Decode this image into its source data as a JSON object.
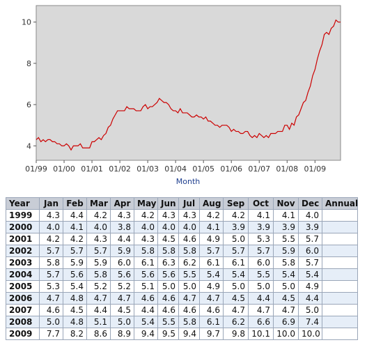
{
  "chart_data": {
    "type": "line",
    "title": "",
    "xlabel": "Month",
    "ylabel": "",
    "ylim": [
      3.3,
      10.8
    ],
    "yticks": [
      4,
      6,
      8,
      10
    ],
    "grid": false,
    "x_ticks": [
      "01/99",
      "01/00",
      "01/01",
      "01/02",
      "01/03",
      "01/04",
      "01/05",
      "01/06",
      "01/07",
      "01/08",
      "01/09"
    ],
    "series": [
      {
        "color": "#cc0000",
        "x": [
          "1999-01",
          "1999-02",
          "1999-03",
          "1999-04",
          "1999-05",
          "1999-06",
          "1999-07",
          "1999-08",
          "1999-09",
          "1999-10",
          "1999-11",
          "1999-12",
          "2000-01",
          "2000-02",
          "2000-03",
          "2000-04",
          "2000-05",
          "2000-06",
          "2000-07",
          "2000-08",
          "2000-09",
          "2000-10",
          "2000-11",
          "2000-12",
          "2001-01",
          "2001-02",
          "2001-03",
          "2001-04",
          "2001-05",
          "2001-06",
          "2001-07",
          "2001-08",
          "2001-09",
          "2001-10",
          "2001-11",
          "2001-12",
          "2002-01",
          "2002-02",
          "2002-03",
          "2002-04",
          "2002-05",
          "2002-06",
          "2002-07",
          "2002-08",
          "2002-09",
          "2002-10",
          "2002-11",
          "2002-12",
          "2003-01",
          "2003-02",
          "2003-03",
          "2003-04",
          "2003-05",
          "2003-06",
          "2003-07",
          "2003-08",
          "2003-09",
          "2003-10",
          "2003-11",
          "2003-12",
          "2004-01",
          "2004-02",
          "2004-03",
          "2004-04",
          "2004-05",
          "2004-06",
          "2004-07",
          "2004-08",
          "2004-09",
          "2004-10",
          "2004-11",
          "2004-12",
          "2005-01",
          "2005-02",
          "2005-03",
          "2005-04",
          "2005-05",
          "2005-06",
          "2005-07",
          "2005-08",
          "2005-09",
          "2005-10",
          "2005-11",
          "2005-12",
          "2006-01",
          "2006-02",
          "2006-03",
          "2006-04",
          "2006-05",
          "2006-06",
          "2006-07",
          "2006-08",
          "2006-09",
          "2006-10",
          "2006-11",
          "2006-12",
          "2007-01",
          "2007-02",
          "2007-03",
          "2007-04",
          "2007-05",
          "2007-06",
          "2007-07",
          "2007-08",
          "2007-09",
          "2007-10",
          "2007-11",
          "2007-12",
          "2008-01",
          "2008-02",
          "2008-03",
          "2008-04",
          "2008-05",
          "2008-06",
          "2008-07",
          "2008-08",
          "2008-09",
          "2008-10",
          "2008-11",
          "2008-12",
          "2009-01",
          "2009-02",
          "2009-03",
          "2009-04",
          "2009-05",
          "2009-06",
          "2009-07",
          "2009-08",
          "2009-09",
          "2009-10",
          "2009-11",
          "2009-12"
        ],
        "values": [
          4.3,
          4.4,
          4.2,
          4.3,
          4.2,
          4.3,
          4.3,
          4.2,
          4.2,
          4.1,
          4.1,
          4.0,
          4.0,
          4.1,
          4.0,
          3.8,
          4.0,
          4.0,
          4.0,
          4.1,
          3.9,
          3.9,
          3.9,
          3.9,
          4.2,
          4.2,
          4.3,
          4.4,
          4.3,
          4.5,
          4.6,
          4.9,
          5.0,
          5.3,
          5.5,
          5.7,
          5.7,
          5.7,
          5.7,
          5.9,
          5.8,
          5.8,
          5.8,
          5.7,
          5.7,
          5.7,
          5.9,
          6.0,
          5.8,
          5.9,
          5.9,
          6.0,
          6.1,
          6.3,
          6.2,
          6.1,
          6.1,
          6.0,
          5.8,
          5.7,
          5.7,
          5.6,
          5.8,
          5.6,
          5.6,
          5.6,
          5.5,
          5.4,
          5.4,
          5.5,
          5.4,
          5.4,
          5.3,
          5.4,
          5.2,
          5.2,
          5.1,
          5.0,
          5.0,
          4.9,
          5.0,
          5.0,
          5.0,
          4.9,
          4.7,
          4.8,
          4.7,
          4.7,
          4.6,
          4.6,
          4.7,
          4.7,
          4.5,
          4.4,
          4.5,
          4.4,
          4.6,
          4.5,
          4.4,
          4.5,
          4.4,
          4.6,
          4.6,
          4.6,
          4.7,
          4.7,
          4.7,
          5.0,
          5.0,
          4.8,
          5.1,
          5.0,
          5.4,
          5.5,
          5.8,
          6.1,
          6.2,
          6.6,
          6.9,
          7.4,
          7.7,
          8.2,
          8.6,
          8.9,
          9.4,
          9.5,
          9.4,
          9.7,
          9.8,
          10.1,
          10.0,
          10.0
        ]
      }
    ]
  },
  "table": {
    "headers": [
      "Year",
      "Jan",
      "Feb",
      "Mar",
      "Apr",
      "May",
      "Jun",
      "Jul",
      "Aug",
      "Sep",
      "Oct",
      "Nov",
      "Dec",
      "Annual"
    ],
    "rows": [
      {
        "year": "1999",
        "values": [
          "4.3",
          "4.4",
          "4.2",
          "4.3",
          "4.2",
          "4.3",
          "4.3",
          "4.2",
          "4.2",
          "4.1",
          "4.1",
          "4.0"
        ],
        "annual": ""
      },
      {
        "year": "2000",
        "values": [
          "4.0",
          "4.1",
          "4.0",
          "3.8",
          "4.0",
          "4.0",
          "4.0",
          "4.1",
          "3.9",
          "3.9",
          "3.9",
          "3.9"
        ],
        "annual": ""
      },
      {
        "year": "2001",
        "values": [
          "4.2",
          "4.2",
          "4.3",
          "4.4",
          "4.3",
          "4.5",
          "4.6",
          "4.9",
          "5.0",
          "5.3",
          "5.5",
          "5.7"
        ],
        "annual": ""
      },
      {
        "year": "2002",
        "values": [
          "5.7",
          "5.7",
          "5.7",
          "5.9",
          "5.8",
          "5.8",
          "5.8",
          "5.7",
          "5.7",
          "5.7",
          "5.9",
          "6.0"
        ],
        "annual": ""
      },
      {
        "year": "2003",
        "values": [
          "5.8",
          "5.9",
          "5.9",
          "6.0",
          "6.1",
          "6.3",
          "6.2",
          "6.1",
          "6.1",
          "6.0",
          "5.8",
          "5.7"
        ],
        "annual": ""
      },
      {
        "year": "2004",
        "values": [
          "5.7",
          "5.6",
          "5.8",
          "5.6",
          "5.6",
          "5.6",
          "5.5",
          "5.4",
          "5.4",
          "5.5",
          "5.4",
          "5.4"
        ],
        "annual": ""
      },
      {
        "year": "2005",
        "values": [
          "5.3",
          "5.4",
          "5.2",
          "5.2",
          "5.1",
          "5.0",
          "5.0",
          "4.9",
          "5.0",
          "5.0",
          "5.0",
          "4.9"
        ],
        "annual": ""
      },
      {
        "year": "2006",
        "values": [
          "4.7",
          "4.8",
          "4.7",
          "4.7",
          "4.6",
          "4.6",
          "4.7",
          "4.7",
          "4.5",
          "4.4",
          "4.5",
          "4.4"
        ],
        "annual": ""
      },
      {
        "year": "2007",
        "values": [
          "4.6",
          "4.5",
          "4.4",
          "4.5",
          "4.4",
          "4.6",
          "4.6",
          "4.6",
          "4.7",
          "4.7",
          "4.7",
          "5.0"
        ],
        "annual": ""
      },
      {
        "year": "2008",
        "values": [
          "5.0",
          "4.8",
          "5.1",
          "5.0",
          "5.4",
          "5.5",
          "5.8",
          "6.1",
          "6.2",
          "6.6",
          "6.9",
          "7.4"
        ],
        "annual": ""
      },
      {
        "year": "2009",
        "values": [
          "7.7",
          "8.2",
          "8.6",
          "8.9",
          "9.4",
          "9.5",
          "9.4",
          "9.7",
          "9.8",
          "10.1",
          "10.0",
          "10.0"
        ],
        "annual": ""
      }
    ]
  }
}
